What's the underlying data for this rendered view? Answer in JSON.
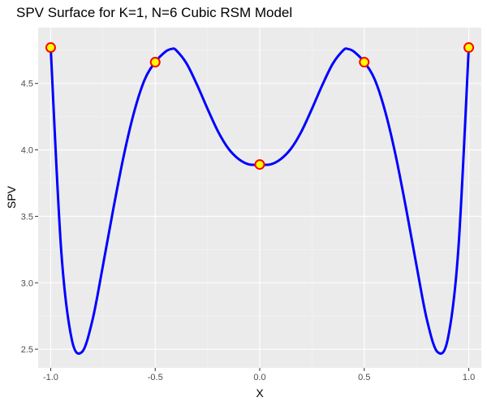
{
  "chart_data": {
    "type": "line",
    "title": "SPV Surface for K=1, N=6 Cubic RSM Model",
    "xlabel": "X",
    "ylabel": "SPV",
    "xlim": [
      -1.06,
      1.06
    ],
    "ylim": [
      2.36,
      4.92
    ],
    "xticks": [
      -1.0,
      -0.5,
      0.0,
      0.5,
      1.0
    ],
    "xtick_labels": [
      "-1.0",
      "-0.5",
      "0.0",
      "0.5",
      "1.0"
    ],
    "yticks": [
      2.5,
      3.0,
      3.5,
      4.0,
      4.5
    ],
    "ytick_labels": [
      "2.5",
      "3.0",
      "3.5",
      "4.0",
      "4.5"
    ],
    "grid": true,
    "legend": "none",
    "series": [
      {
        "x": [
          -1.0,
          -0.95,
          -0.9,
          -0.85,
          -0.8,
          -0.75,
          -0.7,
          -0.65,
          -0.6,
          -0.55,
          -0.5,
          -0.45,
          -0.42,
          -0.4,
          -0.35,
          -0.3,
          -0.25,
          -0.2,
          -0.15,
          -0.1,
          -0.05,
          0.0,
          0.05,
          0.1,
          0.15,
          0.2,
          0.25,
          0.3,
          0.35,
          0.4,
          0.42,
          0.45,
          0.5,
          0.55,
          0.6,
          0.65,
          0.7,
          0.75,
          0.8,
          0.85,
          0.9,
          0.95,
          1.0
        ],
        "y": [
          4.77,
          3.25,
          2.58,
          2.48,
          2.72,
          3.13,
          3.56,
          3.96,
          4.29,
          4.53,
          4.66,
          4.74,
          4.76,
          4.75,
          4.65,
          4.49,
          4.31,
          4.14,
          4.01,
          3.93,
          3.89,
          3.89,
          3.89,
          3.93,
          4.01,
          4.14,
          4.31,
          4.49,
          4.65,
          4.75,
          4.76,
          4.74,
          4.66,
          4.53,
          4.29,
          3.96,
          3.56,
          3.13,
          2.72,
          2.48,
          2.58,
          3.25,
          4.77
        ]
      }
    ],
    "design_points": {
      "x": [
        -1.0,
        -0.5,
        0.0,
        0.5,
        1.0
      ],
      "y": [
        4.77,
        4.66,
        3.89,
        4.66,
        4.77
      ]
    },
    "colors": {
      "panel": "#ebebeb",
      "grid_major": "#ffffff",
      "grid_minor": "#f4f4f4",
      "line": "#0000ff",
      "point_fill": "#ffff00",
      "point_stroke": "#ff0000"
    }
  }
}
